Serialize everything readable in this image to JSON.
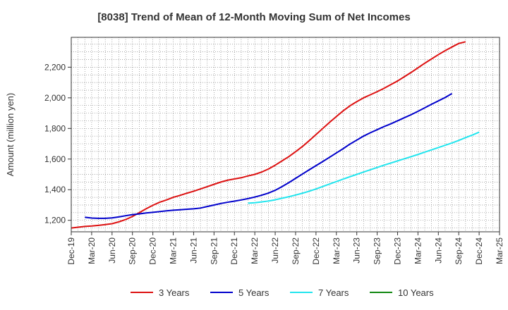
{
  "chart_data": {
    "type": "line",
    "title": "[8038]  Trend of Mean of 12-Month Moving Sum of Net Incomes",
    "xlabel": "",
    "ylabel": "Amount (million yen)",
    "x_tick_labels": [
      "Dec-19",
      "Mar-20",
      "Jun-20",
      "Sep-20",
      "Dec-20",
      "Mar-21",
      "Jun-21",
      "Sep-21",
      "Dec-21",
      "Mar-22",
      "Jun-22",
      "Sep-22",
      "Dec-22",
      "Mar-23",
      "Jun-23",
      "Sep-23",
      "Dec-23",
      "Mar-24",
      "Jun-24",
      "Sep-24",
      "Dec-24",
      "Mar-25"
    ],
    "y_ticks": [
      1200,
      1400,
      1600,
      1800,
      2000,
      2200
    ],
    "y_tick_labels": [
      "1,200",
      "1,400",
      "1,600",
      "1,800",
      "2,000",
      "2,200"
    ],
    "ylim": [
      1125,
      2395
    ],
    "grid": true,
    "legend_position": "bottom",
    "series": [
      {
        "name": "3 Years",
        "color": "#dd1111",
        "start_index": 0,
        "values": [
          1150,
          1155,
          1160,
          1163,
          1167,
          1172,
          1178,
          1190,
          1205,
          1225,
          1250,
          1275,
          1298,
          1318,
          1333,
          1350,
          1363,
          1377,
          1390,
          1405,
          1420,
          1435,
          1450,
          1462,
          1470,
          1478,
          1490,
          1500,
          1515,
          1535,
          1560,
          1588,
          1616,
          1648,
          1682,
          1720,
          1760,
          1800,
          1840,
          1878,
          1915,
          1948,
          1975,
          2000,
          2020,
          2040,
          2062,
          2086,
          2110,
          2138,
          2166,
          2196,
          2226,
          2254,
          2282,
          2308,
          2332,
          2355,
          2366
        ]
      },
      {
        "name": "5 Years",
        "color": "#0000cc",
        "start_index": 2,
        "values": [
          1220,
          1215,
          1213,
          1213,
          1216,
          1222,
          1230,
          1237,
          1242,
          1248,
          1252,
          1257,
          1262,
          1266,
          1269,
          1272,
          1275,
          1280,
          1290,
          1300,
          1310,
          1318,
          1325,
          1333,
          1342,
          1352,
          1364,
          1378,
          1396,
          1420,
          1446,
          1474,
          1502,
          1530,
          1557,
          1584,
          1612,
          1640,
          1668,
          1698,
          1724,
          1750,
          1772,
          1792,
          1812,
          1830,
          1850,
          1870,
          1890,
          1912,
          1935,
          1958,
          1980,
          2002,
          2028
        ]
      },
      {
        "name": "7 Years",
        "color": "#22e5ee",
        "start_index": 26,
        "values": [
          1312,
          1315,
          1320,
          1326,
          1334,
          1344,
          1354,
          1365,
          1377,
          1390,
          1405,
          1421,
          1437,
          1453,
          1469,
          1485,
          1500,
          1515,
          1530,
          1545,
          1560,
          1574,
          1588,
          1602,
          1616,
          1630,
          1645,
          1660,
          1675,
          1690,
          1705,
          1722,
          1740,
          1757,
          1776
        ]
      },
      {
        "name": "10 Years",
        "color": "#118811",
        "start_index": 0,
        "values": []
      }
    ]
  }
}
